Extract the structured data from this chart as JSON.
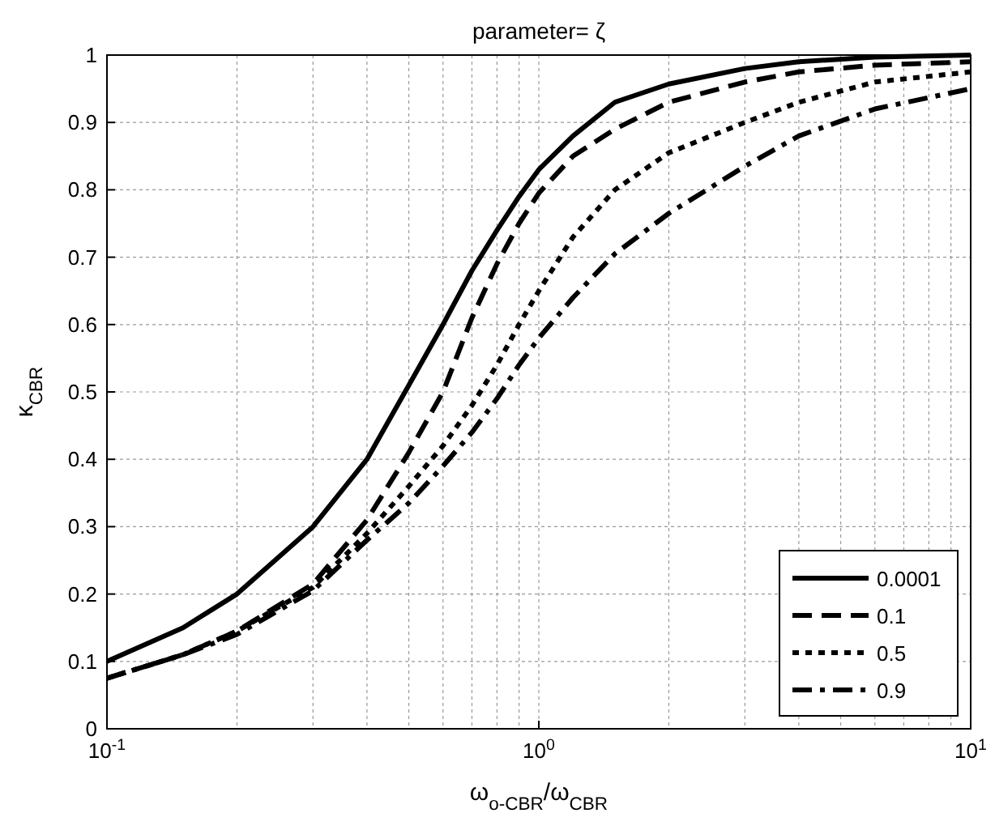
{
  "chart_data": {
    "type": "line",
    "title": "parameter= ζ",
    "xlabel": "ω$_{o-CBR}$/ω$_{CBR}$",
    "ylabel": "κ$_{CBR}$",
    "log": "x",
    "grid": true,
    "legend": "bottom right",
    "xlim": [
      0.1,
      10
    ],
    "xticks": [
      {
        "value": 0.1,
        "label": "10$^{-1}$"
      },
      {
        "value": 1,
        "label": "10$^{0}$"
      },
      {
        "value": 10,
        "label": "10$^{1}$"
      }
    ],
    "ylim": [
      0,
      1
    ],
    "yticks": [
      0,
      0.1,
      0.2,
      0.3,
      0.4,
      0.5,
      0.6,
      0.7,
      0.8,
      0.9,
      1
    ],
    "x": [
      0.1,
      0.15,
      0.2,
      0.3,
      0.4,
      0.5,
      0.6,
      0.7,
      0.8,
      0.9,
      1,
      1.2,
      1.5,
      2,
      3,
      4,
      6,
      10
    ],
    "series": [
      {
        "name": "0.0001",
        "color": "#000000",
        "line_style": "solid",
        "values": [
          0.1,
          0.15,
          0.2,
          0.3,
          0.4,
          0.51,
          0.6,
          0.68,
          0.74,
          0.79,
          0.83,
          0.88,
          0.93,
          0.957,
          0.98,
          0.99,
          0.997,
          1
        ]
      },
      {
        "name": "0.1",
        "color": "#000000",
        "line_style": "dashed",
        "values": [
          0.075,
          0.11,
          0.145,
          0.215,
          0.31,
          0.41,
          0.5,
          0.61,
          0.69,
          0.75,
          0.795,
          0.85,
          0.89,
          0.93,
          0.96,
          0.975,
          0.985,
          0.99
        ]
      },
      {
        "name": "0.5",
        "color": "#000000",
        "line_style": "dotted",
        "values": [
          0.075,
          0.11,
          0.145,
          0.21,
          0.29,
          0.36,
          0.42,
          0.48,
          0.54,
          0.6,
          0.65,
          0.73,
          0.8,
          0.855,
          0.9,
          0.93,
          0.96,
          0.975
        ]
      },
      {
        "name": "0.9",
        "color": "#000000",
        "line_style": "dashdot",
        "values": [
          0.075,
          0.11,
          0.14,
          0.205,
          0.28,
          0.335,
          0.39,
          0.44,
          0.49,
          0.54,
          0.58,
          0.64,
          0.705,
          0.765,
          0.835,
          0.88,
          0.92,
          0.95
        ]
      }
    ]
  }
}
